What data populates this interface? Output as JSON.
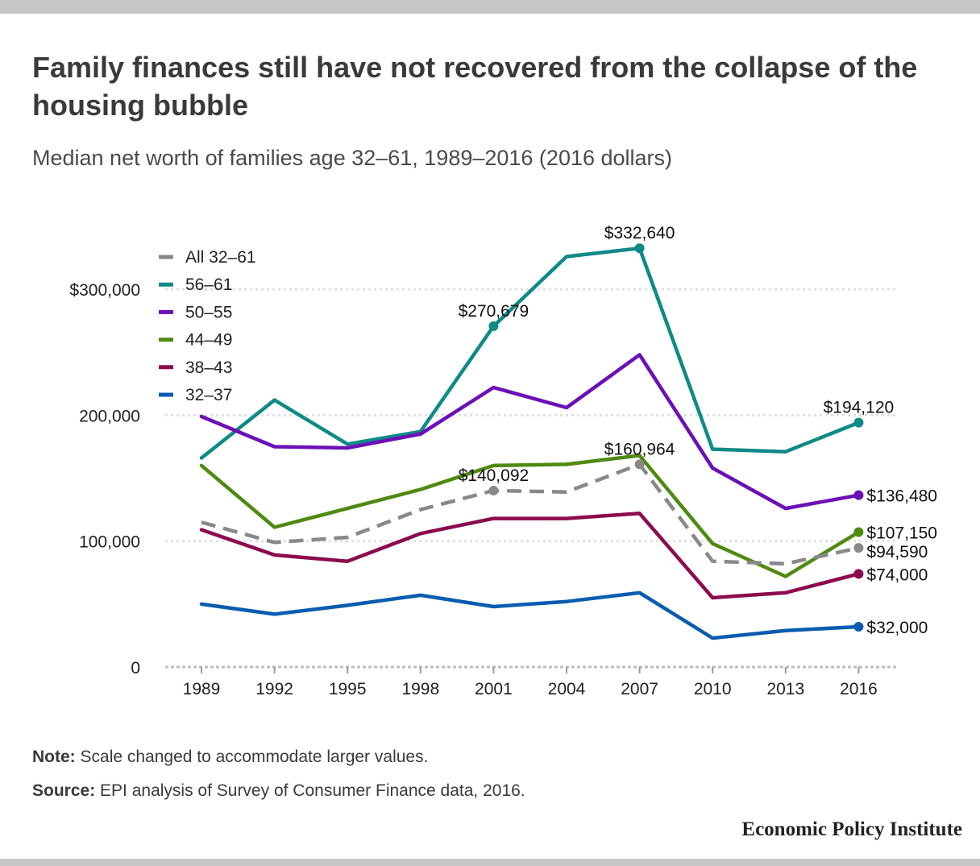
{
  "title": "Family finances still have not recovered from the collapse of the housing bubble",
  "subtitle": "Median net worth of families age 32–61, 1989–2016 (2016 dollars)",
  "note": {
    "label": "Note:",
    "text": " Scale changed to accommodate larger values."
  },
  "source": {
    "label": "Source:",
    "text": " EPI analysis of Survey of Consumer Finance data, 2016."
  },
  "brand": "Economic Policy Institute",
  "chart_data": {
    "type": "line",
    "x": [
      "1989",
      "1992",
      "1995",
      "1998",
      "2001",
      "2004",
      "2007",
      "2010",
      "2013",
      "2016"
    ],
    "ylim": [
      0,
      340000
    ],
    "y_ticks": [
      {
        "value": 0,
        "label": "0"
      },
      {
        "value": 100000,
        "label": "100,000"
      },
      {
        "value": 200000,
        "label": "200,000"
      },
      {
        "value": 300000,
        "label": "$300,000"
      }
    ],
    "grid": true,
    "legend_position": "top-left",
    "series": [
      {
        "name": "All 32–61",
        "color": "#888888",
        "dashed": true,
        "values": [
          115000,
          99000,
          103000,
          125000,
          140092,
          139000,
          160964,
          84000,
          82000,
          94590
        ],
        "markers": [
          4,
          6,
          9
        ],
        "labels": [
          {
            "index": 4,
            "text": "$140,092",
            "pos": "above"
          },
          {
            "index": 6,
            "text": "$160,964",
            "pos": "above"
          },
          {
            "index": 9,
            "text": "$94,590",
            "pos": "right-low"
          }
        ]
      },
      {
        "name": "56–61",
        "color": "#0e8a87",
        "dashed": false,
        "values": [
          166000,
          212000,
          177000,
          187000,
          270679,
          326000,
          332640,
          173000,
          171000,
          194120
        ],
        "markers": [
          4,
          6,
          9
        ],
        "labels": [
          {
            "index": 4,
            "text": "$270,679",
            "pos": "above"
          },
          {
            "index": 6,
            "text": "$332,640",
            "pos": "above"
          },
          {
            "index": 9,
            "text": "$194,120",
            "pos": "above"
          }
        ]
      },
      {
        "name": "50–55",
        "color": "#6c0fb8",
        "dashed": false,
        "values": [
          199000,
          175000,
          174000,
          185000,
          222000,
          206000,
          248000,
          158000,
          126000,
          136480
        ],
        "markers": [
          9
        ],
        "labels": [
          {
            "index": 9,
            "text": "$136,480",
            "pos": "right"
          }
        ]
      },
      {
        "name": "44–49",
        "color": "#4f8a10",
        "dashed": false,
        "values": [
          160000,
          111000,
          126000,
          141000,
          160000,
          161000,
          168000,
          98000,
          72000,
          107150
        ],
        "markers": [
          9
        ],
        "labels": [
          {
            "index": 9,
            "text": "$107,150",
            "pos": "right"
          }
        ]
      },
      {
        "name": "38–43",
        "color": "#8c0a4e",
        "dashed": false,
        "values": [
          109000,
          89000,
          84000,
          106000,
          118000,
          118000,
          122000,
          55000,
          59000,
          74000
        ],
        "markers": [
          9
        ],
        "labels": [
          {
            "index": 9,
            "text": "$74,000",
            "pos": "right"
          }
        ]
      },
      {
        "name": "32–37",
        "color": "#0a5cb0",
        "dashed": false,
        "values": [
          50000,
          42000,
          49000,
          57000,
          48000,
          52000,
          59000,
          23000,
          29000,
          32000
        ],
        "markers": [
          9
        ],
        "labels": [
          {
            "index": 9,
            "text": "$32,000",
            "pos": "right"
          }
        ]
      }
    ]
  }
}
